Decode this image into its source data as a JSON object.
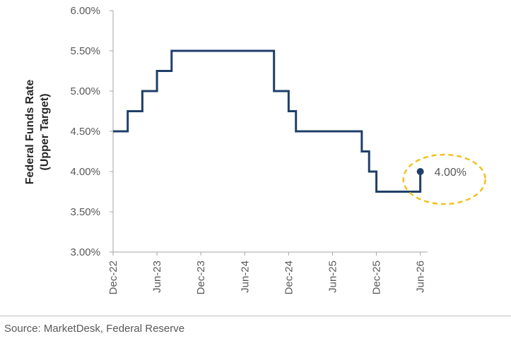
{
  "chart_data": {
    "type": "line",
    "title": "",
    "ylabel_line1": "Federal Funds Rate",
    "ylabel_line2": "(Upper Target)",
    "xlabel": "",
    "x_ticks": [
      "Dec-22",
      "Jun-23",
      "Dec-23",
      "Jun-24",
      "Dec-24",
      "Jun-25",
      "Dec-25",
      "Jun-26"
    ],
    "y_ticks": [
      "3.00%",
      "3.50%",
      "4.00%",
      "4.50%",
      "5.00%",
      "5.50%",
      "6.00%"
    ],
    "ylim": [
      3.0,
      6.0
    ],
    "x_range": [
      "2022-12",
      "2026-07"
    ],
    "grid": false,
    "legend": "none",
    "series": [
      {
        "x": [
          "2022-12",
          "2023-01",
          "2023-02",
          "2023-03",
          "2023-04",
          "2023-05",
          "2023-06",
          "2023-07",
          "2023-08",
          "2023-09",
          "2023-10",
          "2023-11",
          "2023-12",
          "2024-01",
          "2024-02",
          "2024-03",
          "2024-04",
          "2024-05",
          "2024-06",
          "2024-07",
          "2024-08",
          "2024-09",
          "2024-10",
          "2024-11",
          "2024-12",
          "2025-01",
          "2025-02",
          "2025-03",
          "2025-04",
          "2025-05",
          "2025-06",
          "2025-07",
          "2025-08",
          "2025-09",
          "2025-10",
          "2025-11",
          "2025-12",
          "2026-01",
          "2026-02",
          "2026-03",
          "2026-04",
          "2026-05",
          "2026-06"
        ],
        "values": [
          4.5,
          4.5,
          4.75,
          4.75,
          5.0,
          5.0,
          5.25,
          5.25,
          5.5,
          5.5,
          5.5,
          5.5,
          5.5,
          5.5,
          5.5,
          5.5,
          5.5,
          5.5,
          5.5,
          5.5,
          5.5,
          5.5,
          5.0,
          5.0,
          4.75,
          4.5,
          4.5,
          4.5,
          4.5,
          4.5,
          4.5,
          4.5,
          4.5,
          4.5,
          4.25,
          4.0,
          3.75,
          3.75,
          3.75,
          3.75,
          3.75,
          3.75,
          4.0
        ],
        "color": "#1f3f68"
      }
    ],
    "annotation": {
      "label": "4.00%",
      "x": "2026-06",
      "y": 4.0,
      "marker_color": "#1f3f68",
      "ellipse_color": "#f2c11f"
    },
    "axis_color": "#a6a6a6",
    "text_color": "#595959"
  },
  "source": "Source: MarketDesk, Federal Reserve"
}
